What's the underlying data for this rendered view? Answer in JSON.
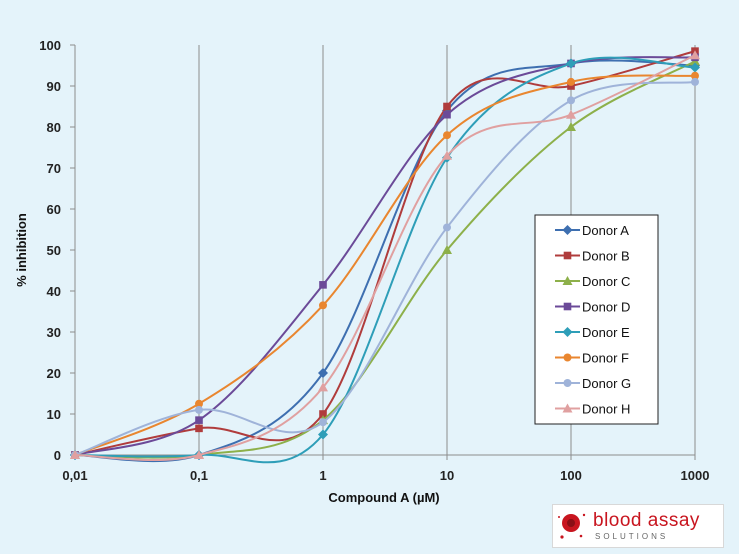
{
  "chart_data": {
    "type": "line",
    "xlabel": "Compound A (µM)",
    "ylabel": "% inhibition",
    "x_scale": "log",
    "xlim": [
      0.01,
      1000
    ],
    "ylim": [
      0,
      100
    ],
    "x_ticks": [
      0.01,
      0.1,
      1,
      10,
      100,
      1000
    ],
    "x_tick_labels": [
      "0,01",
      "0,1",
      "1",
      "10",
      "100",
      "1000"
    ],
    "y_ticks": [
      0,
      10,
      20,
      30,
      40,
      50,
      60,
      70,
      80,
      90,
      100
    ],
    "y_tick_labels": [
      "0",
      "10",
      "20",
      "30",
      "40",
      "50",
      "60",
      "70",
      "80",
      "90",
      "100"
    ],
    "grid": "vertical",
    "legend_position": "right",
    "x": [
      0.01,
      0.1,
      1,
      10,
      100,
      1000
    ],
    "series": [
      {
        "name": "Donor A",
        "marker": "diamond",
        "color": "#3e6fb0",
        "values": [
          0,
          0,
          20,
          84,
          95.5,
          95
        ]
      },
      {
        "name": "Donor B",
        "marker": "square",
        "color": "#b03c3c",
        "values": [
          0,
          6.5,
          10,
          85,
          90,
          98.5
        ]
      },
      {
        "name": "Donor C",
        "marker": "triangle",
        "color": "#8db04a",
        "values": [
          0,
          0,
          8.5,
          50,
          80,
          96
        ]
      },
      {
        "name": "Donor D",
        "marker": "square",
        "color": "#6b4a98",
        "values": [
          0,
          8.5,
          41.5,
          83,
          95.5,
          97
        ]
      },
      {
        "name": "Donor E",
        "marker": "diamond",
        "color": "#2e9eb8",
        "values": [
          0,
          0,
          5,
          72.5,
          95.5,
          94.5
        ]
      },
      {
        "name": "Donor F",
        "marker": "circle",
        "color": "#e9862f",
        "values": [
          0,
          12.5,
          36.5,
          78,
          91,
          92.5
        ]
      },
      {
        "name": "Donor G",
        "marker": "circle",
        "color": "#9fb3d9",
        "values": [
          0,
          11,
          8,
          55.5,
          86.5,
          91
        ]
      },
      {
        "name": "Donor H",
        "marker": "triangle",
        "color": "#e0a0a0",
        "values": [
          0,
          0,
          16.5,
          73,
          83,
          97.5
        ]
      }
    ]
  },
  "logo": {
    "name": "blood assay",
    "tagline": "SOLUTIONS"
  }
}
